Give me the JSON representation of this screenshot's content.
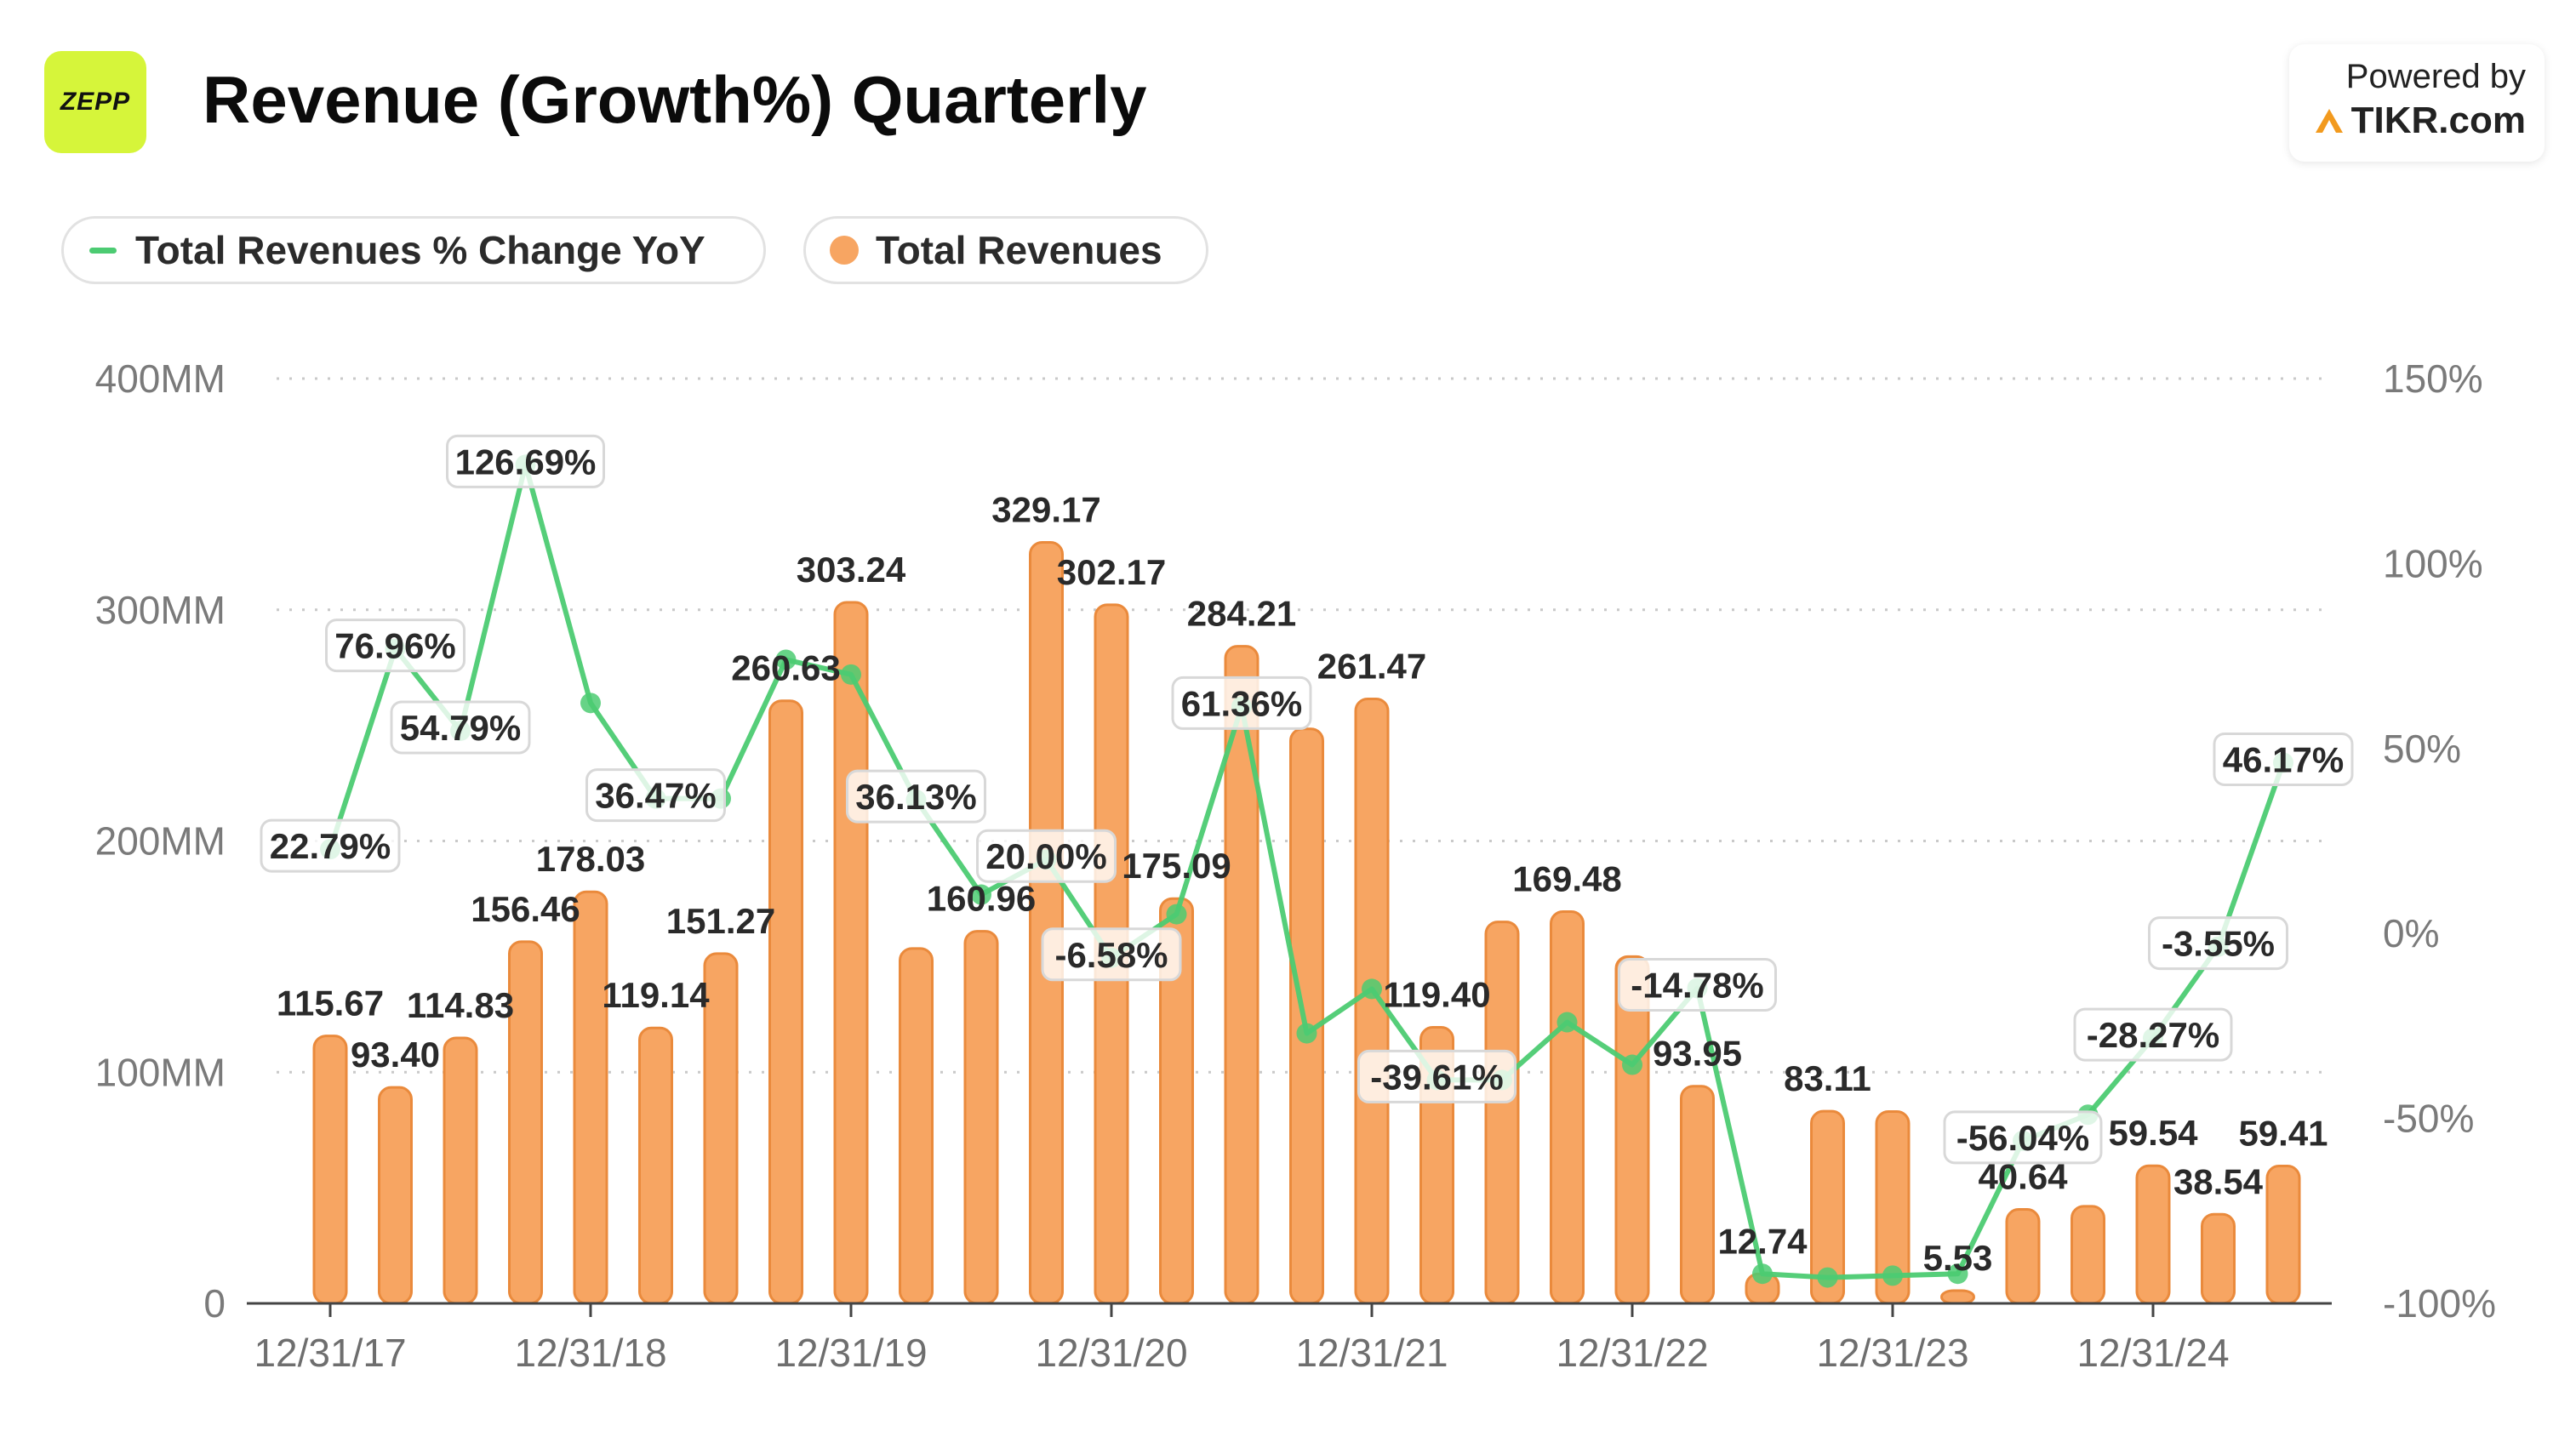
{
  "header": {
    "logo_text": "ZEPP",
    "title": "Revenue (Growth%) Quarterly",
    "powered_by": "Powered by",
    "brand": "TIKR.com"
  },
  "legend": {
    "line_label": "Total Revenues % Change YoY",
    "bar_label": "Total Revenues"
  },
  "colors": {
    "bar": "#f7a562",
    "bar_stroke": "#ea8a3c",
    "line": "#4ccb72",
    "logo_bg": "#d6f53a"
  },
  "chart_data": {
    "type": "bar",
    "title": "Revenue (Growth%) Quarterly",
    "left_axis": {
      "ticks": [
        "0",
        "100MM",
        "200MM",
        "300MM",
        "400MM"
      ],
      "ylim": [
        0,
        400
      ]
    },
    "right_axis": {
      "ticks": [
        "-100%",
        "-50%",
        "0%",
        "50%",
        "100%",
        "150%"
      ],
      "ylim": [
        -100,
        150
      ]
    },
    "x_tick_labels": [
      "12/31/17",
      "12/31/18",
      "12/31/19",
      "12/31/20",
      "12/31/21",
      "12/31/22",
      "12/31/23",
      "12/31/24"
    ],
    "grid": "horizontal dotted",
    "legend_position": "top-left",
    "series": [
      {
        "name": "Total Revenues",
        "kind": "bar",
        "axis": "left",
        "values": [
          115.67,
          93.4,
          114.83,
          156.46,
          178.03,
          119.14,
          151.27,
          260.63,
          303.24,
          153.5,
          160.96,
          329.17,
          302.17,
          175.09,
          284.21,
          248.5,
          261.47,
          119.4,
          165.0,
          169.48,
          150.0,
          93.95,
          12.74,
          83.11,
          83.0,
          5.53,
          40.64,
          42.0,
          59.54,
          38.54,
          59.41
        ],
        "labels": [
          "115.67",
          "93.40",
          "114.83",
          "156.46",
          "178.03",
          "119.14",
          "151.27",
          "260.63",
          "303.24",
          "",
          "160.96",
          "329.17",
          "302.17",
          "175.09",
          "284.21",
          "",
          "261.47",
          "119.40",
          "",
          "169.48",
          "",
          "93.95",
          "12.74",
          "83.11",
          "",
          "5.53",
          "40.64",
          "",
          "59.54",
          "38.54",
          "59.41"
        ]
      },
      {
        "name": "Total Revenues % Change YoY",
        "kind": "line",
        "axis": "right",
        "values": [
          22.79,
          76.96,
          54.79,
          126.69,
          62.3,
          36.47,
          36.47,
          74.0,
          70.0,
          36.13,
          10.5,
          20.0,
          -6.58,
          5.2,
          61.36,
          -27.0,
          -15.0,
          -39.61,
          -39.61,
          -24.0,
          -35.5,
          -14.78,
          -92.0,
          -93.0,
          -92.5,
          -92.0,
          -56.04,
          -49.0,
          -28.27,
          -3.55,
          46.17
        ],
        "labels": [
          "22.79%",
          "76.96%",
          "54.79%",
          "126.69%",
          "",
          "36.47%",
          "",
          "",
          "",
          "36.13%",
          "",
          "20.00%",
          "-6.58%",
          "",
          "61.36%",
          "",
          "",
          "-39.61%",
          "",
          "",
          "",
          "-14.78%",
          "",
          "",
          "",
          "",
          "-56.04%",
          "",
          "-28.27%",
          "-3.55%",
          "46.17%"
        ]
      }
    ]
  }
}
